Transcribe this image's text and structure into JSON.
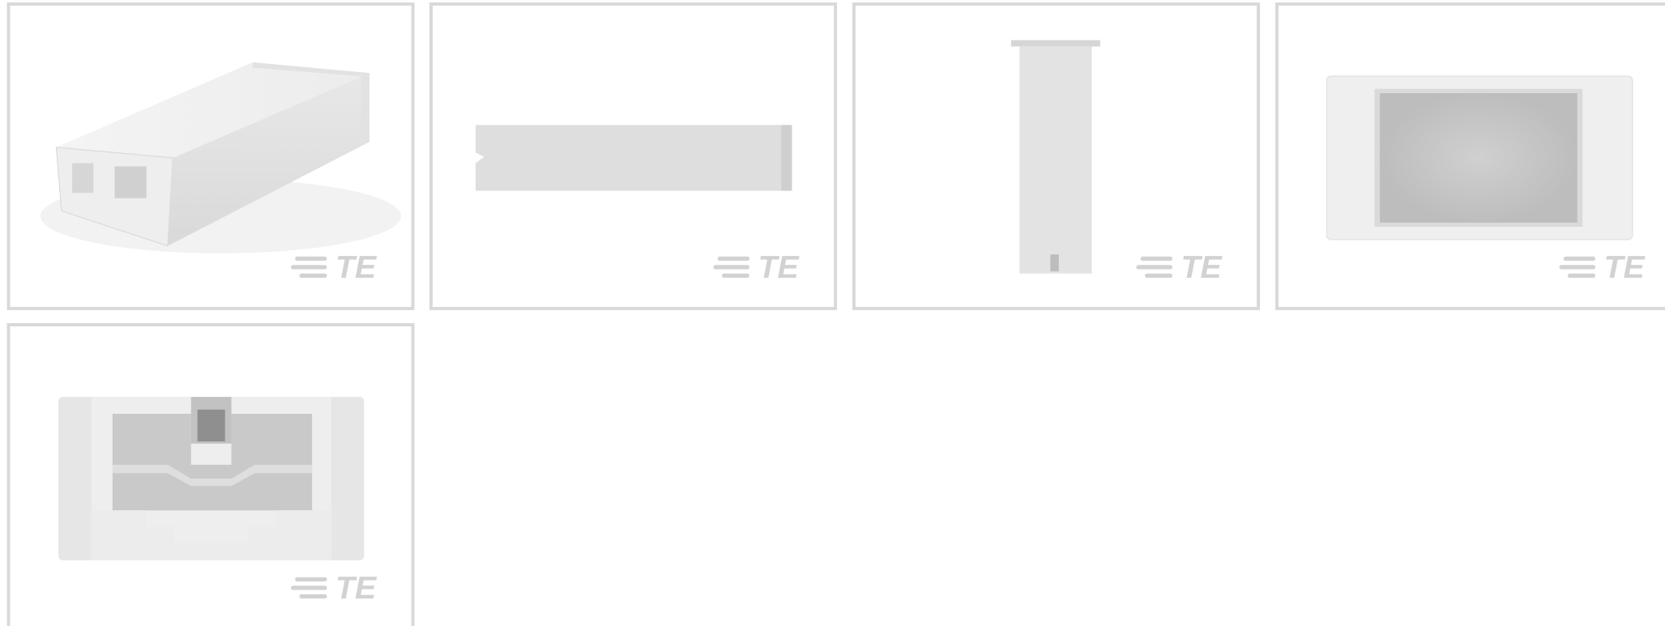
{
  "tiles": [
    {
      "logo": "TE"
    },
    {
      "logo": "TE"
    },
    {
      "logo": "TE"
    },
    {
      "logo": "TE"
    },
    {
      "logo": "TE"
    }
  ]
}
